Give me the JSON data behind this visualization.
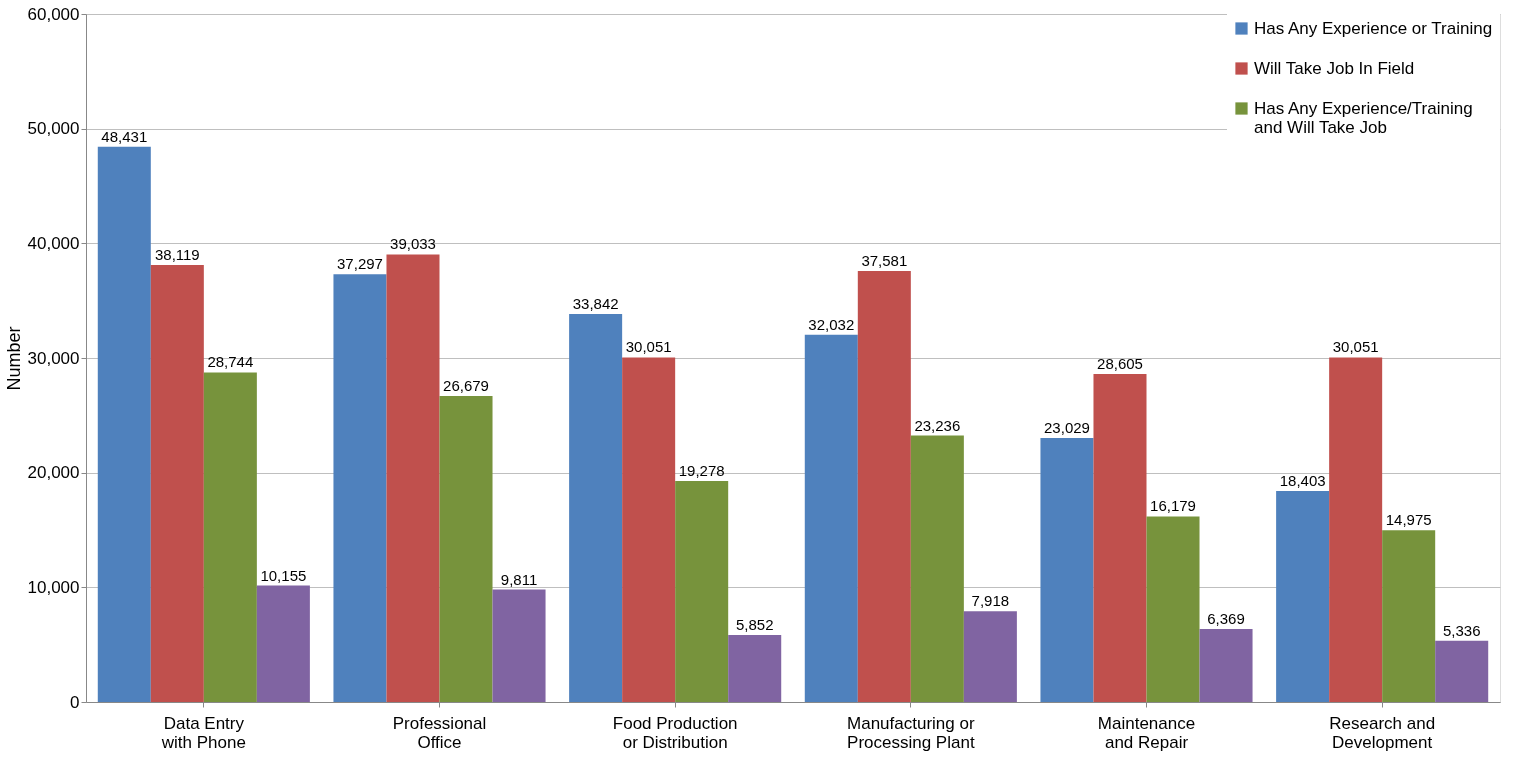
{
  "chart_data": {
    "type": "bar",
    "ylabel": "Number",
    "categories": [
      "Data Entry with Phone",
      "Professional Office",
      "Food Production or Distribution",
      "Manufacturing or Processing Plant",
      "Maintenance and Repair",
      "Research and Development"
    ],
    "series": [
      {
        "name": "Has Any Experience or Training",
        "color": "#4f81bd",
        "values": [
          48431,
          37297,
          33842,
          32032,
          23029,
          18403
        ],
        "value_labels": [
          "48,431",
          "37,297",
          "33,842",
          "32,032",
          "23,029",
          "18,403"
        ]
      },
      {
        "name": "Will Take Job In Field",
        "color": "#c0504d",
        "values": [
          38119,
          39033,
          30051,
          37581,
          28605,
          30051
        ],
        "value_labels": [
          "38,119",
          "39,033",
          "30,051",
          "37,581",
          "28,605",
          "30,051"
        ]
      },
      {
        "name": "Has Any Experience/Training and Will Take Job",
        "color": "#77933c",
        "values": [
          28744,
          26679,
          19278,
          23236,
          16179,
          14975
        ],
        "value_labels": [
          "28,744",
          "26,679",
          "19,278",
          "23,236",
          "16,179",
          "14,975"
        ]
      },
      {
        "color": "#8064a2",
        "values": [
          10155,
          9811,
          5852,
          7918,
          6369,
          5336
        ],
        "value_labels": [
          "10,155",
          "9,811",
          "5,852",
          "7,918",
          "6,369",
          "5,336"
        ]
      }
    ],
    "ylim": [
      0,
      60000
    ],
    "yticks": [
      0,
      {
        "value": 10000,
        "label": "10,000"
      },
      {
        "value": 20000,
        "label": "20,000"
      },
      {
        "value": 30000,
        "label": "30,000"
      },
      {
        "value": 40000,
        "label": "40,000"
      },
      {
        "value": 50000,
        "label": "50,000"
      },
      {
        "value": 60000,
        "label": "60,000"
      }
    ],
    "grid": "y",
    "legend": "top right"
  }
}
